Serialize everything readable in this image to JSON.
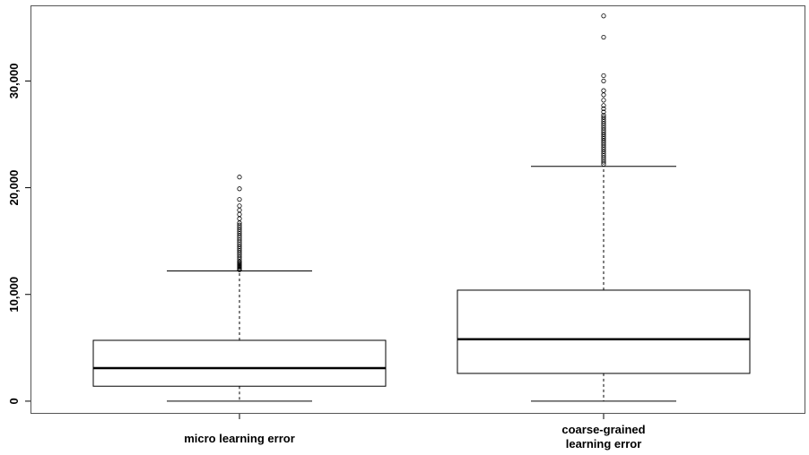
{
  "chart_data": {
    "type": "boxplot",
    "title": "",
    "xlabel": "",
    "ylabel": "",
    "ylim": [
      -1100,
      37000
    ],
    "y_ticks": [
      0,
      10000,
      20000,
      30000
    ],
    "y_tick_labels": [
      "0",
      "10,000",
      "20,000",
      "30,000"
    ],
    "grid": false,
    "categories": [
      "micro learning error",
      "coarse-grained learning error"
    ],
    "category_label_lines": [
      [
        "micro learning error"
      ],
      [
        "coarse-grained",
        "learning error"
      ]
    ],
    "boxes": [
      {
        "name": "micro learning error",
        "whisker_low": 0,
        "q1": 1400,
        "median": 3100,
        "q3": 5700,
        "whisker_high": 12200,
        "outliers": [
          12300,
          12400,
          12500,
          12600,
          12700,
          12800,
          12900,
          13000,
          13100,
          13300,
          13500,
          13700,
          13900,
          14100,
          14300,
          14500,
          14700,
          14900,
          15100,
          15300,
          15500,
          15700,
          15900,
          16100,
          16300,
          16500,
          16700,
          17100,
          17500,
          17900,
          18300,
          18900,
          19900,
          21000
        ]
      },
      {
        "name": "coarse-grained learning error",
        "whisker_low": 0,
        "q1": 2600,
        "median": 5800,
        "q3": 10400,
        "whisker_high": 22000,
        "outliers": [
          22200,
          22400,
          22600,
          22800,
          23000,
          23200,
          23400,
          23600,
          23800,
          24000,
          24200,
          24400,
          24600,
          24800,
          25000,
          25200,
          25400,
          25600,
          25800,
          26000,
          26200,
          26400,
          26600,
          26800,
          27100,
          27400,
          27700,
          28200,
          28700,
          29100,
          30000,
          30500,
          34100,
          36100
        ]
      }
    ]
  }
}
